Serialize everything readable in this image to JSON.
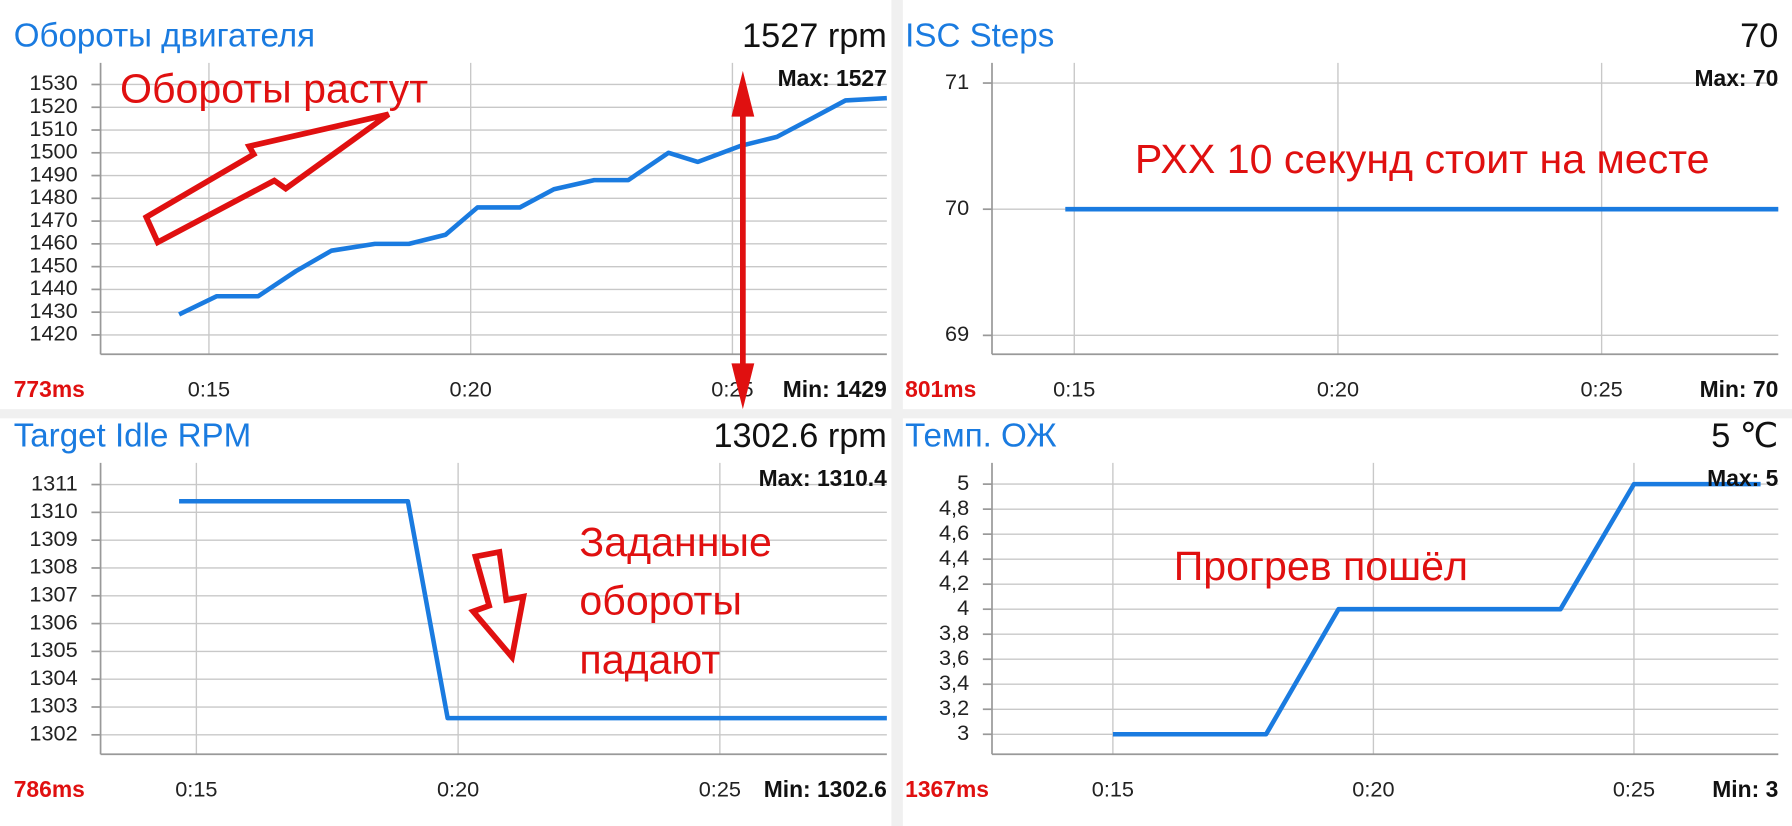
{
  "chart_data": [
    {
      "type": "line",
      "title": "Обороты двигателя",
      "value_text": "1527 rpm",
      "max_label": "Max: 1527",
      "min_label": "Min: 1429",
      "latency": "773ms",
      "color": "#1a7be0",
      "x": [
        14.43,
        15.15,
        15.94,
        16.66,
        17.34,
        18.17,
        18.82,
        19.52,
        20.13,
        20.94,
        21.59,
        22.36,
        23.01,
        23.78,
        24.34,
        25.15,
        25.85,
        26.51,
        27.16,
        27.95
      ],
      "values": [
        1429,
        1437,
        1437,
        1448,
        1457,
        1460,
        1460,
        1464,
        1476,
        1476,
        1484,
        1488,
        1488,
        1500,
        1496,
        1503,
        1507,
        1515,
        1523,
        1524
      ],
      "xlim": [
        12.93,
        27.95
      ],
      "ylim": [
        1411.5,
        1539.5
      ],
      "xticks": [
        {
          "value": 15,
          "label": "0:15"
        },
        {
          "value": 20,
          "label": "0:20"
        },
        {
          "value": 25,
          "label": "0:25"
        }
      ],
      "yticks": [
        1420,
        1430,
        1440,
        1450,
        1460,
        1470,
        1480,
        1490,
        1500,
        1510,
        1520,
        1530
      ],
      "grid": true
    },
    {
      "type": "line",
      "title": "ISC Steps",
      "value_text": "70",
      "max_label": "Max: 70",
      "min_label": "Min: 70",
      "latency": "801ms",
      "color": "#1a7be0",
      "x": [
        14.83,
        28.35
      ],
      "values": [
        70,
        70
      ],
      "xlim": [
        13.44,
        28.35
      ],
      "ylim": [
        68.85,
        71.16
      ],
      "xticks": [
        {
          "value": 15,
          "label": "0:15"
        },
        {
          "value": 20,
          "label": "0:20"
        },
        {
          "value": 25,
          "label": "0:25"
        }
      ],
      "yticks": [
        69,
        70,
        71
      ],
      "grid": true
    },
    {
      "type": "line",
      "title": "Target Idle RPM",
      "value_text": "1302.6 rpm",
      "max_label": "Max: 1310.4",
      "min_label": "Min: 1302.6",
      "latency": "786ms",
      "color": "#1a7be0",
      "x": [
        14.67,
        19.04,
        19.8,
        28.19
      ],
      "values": [
        1310.4,
        1310.4,
        1302.6,
        1302.6
      ],
      "xlim": [
        13.17,
        28.19
      ],
      "ylim": [
        1301.3,
        1311.78
      ],
      "xticks": [
        {
          "value": 15,
          "label": "0:15"
        },
        {
          "value": 20,
          "label": "0:20"
        },
        {
          "value": 25,
          "label": "0:25"
        }
      ],
      "yticks": [
        1302,
        1303,
        1304,
        1305,
        1306,
        1307,
        1308,
        1309,
        1310,
        1311
      ],
      "grid": true
    },
    {
      "type": "line",
      "title": "Темп. ОЖ",
      "value_text": "5 ℃",
      "max_label": "Max: 5",
      "min_label": "Min: 3",
      "latency": "1367ms",
      "color": "#1a7be0",
      "x": [
        15.0,
        17.94,
        19.33,
        23.59,
        25.0,
        27.43
      ],
      "values": [
        3,
        3,
        4,
        4,
        5,
        5
      ],
      "xlim": [
        12.68,
        27.77
      ],
      "ylim": [
        2.84,
        5.17
      ],
      "xticks": [
        {
          "value": 15,
          "label": "0:15"
        },
        {
          "value": 20,
          "label": "0:20"
        },
        {
          "value": 25,
          "label": "0:25"
        }
      ],
      "yticks": [
        3,
        {
          "value": 3.2,
          "label": "3,2"
        },
        {
          "value": 3.4,
          "label": "3,4"
        },
        {
          "value": 3.6,
          "label": "3,6"
        },
        {
          "value": 3.8,
          "label": "3,8"
        },
        4,
        {
          "value": 4.2,
          "label": "4,2"
        },
        {
          "value": 4.4,
          "label": "4,4"
        },
        {
          "value": 4.6,
          "label": "4,6"
        },
        {
          "value": 4.8,
          "label": "4,8"
        },
        5
      ],
      "grid": true
    }
  ],
  "annotations": {
    "rpm_rising": "Обороты растут",
    "isc_still": "РХХ 10 секунд стоит на месте",
    "target_falling": [
      "Заданные",
      "обороты",
      "падают"
    ],
    "warming": "Прогрев пошёл"
  }
}
